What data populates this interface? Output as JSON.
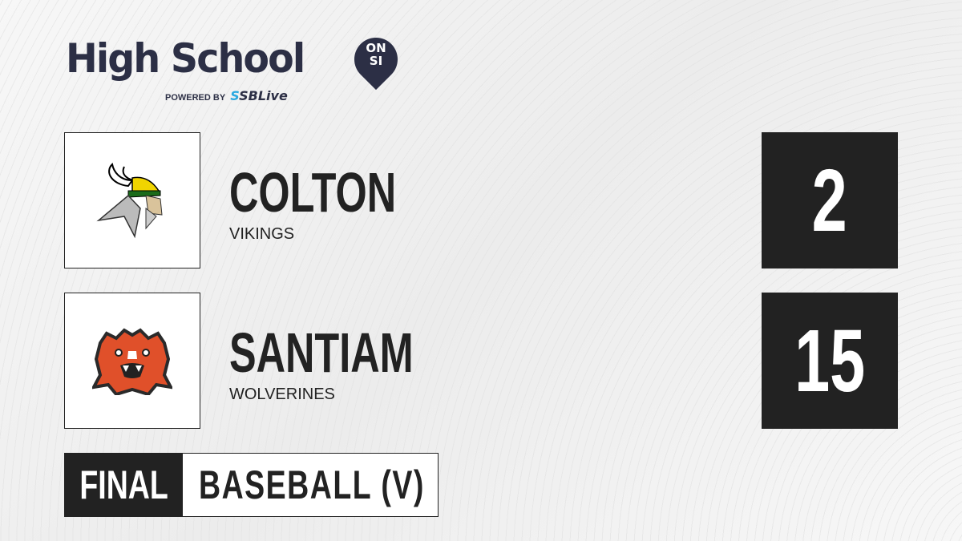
{
  "brand": {
    "title": "High School",
    "badge_top": "ON",
    "badge_bottom": "SI",
    "powered_by": "POWERED BY",
    "partner_prefix": "S",
    "partner": "SBLive",
    "accent": "#29a9e0",
    "navy": "#2c2f45"
  },
  "teams": [
    {
      "name": "COLTON",
      "mascot": "VIKINGS",
      "score": "2",
      "logo": "viking-logo"
    },
    {
      "name": "SANTIAM",
      "mascot": "WOLVERINES",
      "score": "15",
      "logo": "wolverine-logo"
    }
  ],
  "status": "FINAL",
  "sport": "BASEBALL (V)"
}
